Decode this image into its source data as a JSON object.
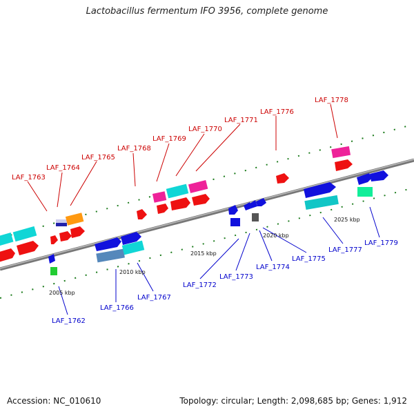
{
  "title": "Lactobacillus fermentum IFO 3956, complete genome",
  "footer": {
    "accession": "Accession: NC_010610",
    "topology": "Topology: circular; Length: 2,098,685 bp; Genes: 1,912"
  },
  "colors": {
    "top_label": "#cc0000",
    "bottom_label": "#0000cc",
    "axis": "#888888",
    "tick": "#1a7a1a"
  },
  "kbp_labels": [
    "2005 kbp",
    "2010 kbp",
    "2015 kbp",
    "2020 kbp",
    "2025 kbp"
  ],
  "top_genes": [
    "LAF_1763",
    "LAF_1764",
    "LAF_1765",
    "LAF_1768",
    "LAF_1769",
    "LAF_1770",
    "LAF_1771",
    "LAF_1776",
    "LAF_1778"
  ],
  "bottom_genes": [
    "LAF_1762",
    "LAF_1766",
    "LAF_1767",
    "LAF_1772",
    "LAF_1773",
    "LAF_1774",
    "LAF_1775",
    "LAF_1777",
    "LAF_1779"
  ]
}
